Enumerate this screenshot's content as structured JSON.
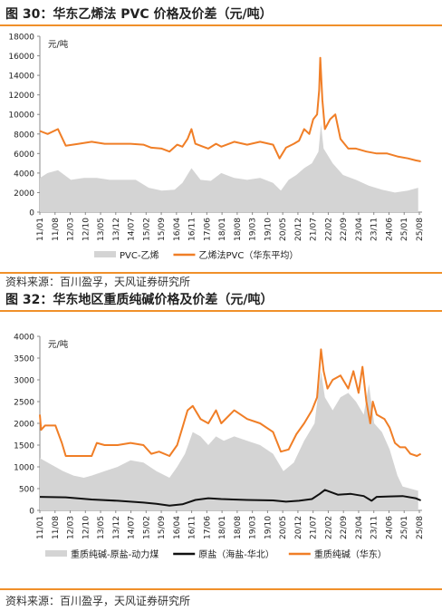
{
  "figures": [
    {
      "title": "图 30：华东乙烯法 PVC 价格及价差（元/吨）",
      "source": "资料来源：百川盈孚，天风证券研究所"
    },
    {
      "title": "图 32：华东地区重质纯碱价格及价差（元/吨）",
      "source": "资料来源：百川盈孚，天风证券研究所"
    }
  ],
  "chart_data": [
    {
      "type": "area",
      "title": "",
      "unit_label": "元/吨",
      "ylim": [
        0,
        18000
      ],
      "yticks": [
        0,
        2000,
        4000,
        6000,
        8000,
        10000,
        12000,
        14000,
        16000,
        18000
      ],
      "xlim": [
        2011.0,
        2025.75
      ],
      "xticks": [
        "11/01",
        "11/08",
        "12/03",
        "12/10",
        "13/05",
        "13/12",
        "14/07",
        "15/02",
        "15/09",
        "16/04",
        "16/11",
        "17/06",
        "18/01",
        "18/08",
        "19/03",
        "19/10",
        "20/05",
        "20/12",
        "21/07",
        "22/02",
        "22/09",
        "23/04",
        "23/11",
        "24/06",
        "25/01",
        "25/08"
      ],
      "legend_position": "bottom",
      "colors": {
        "spread": "#d4d4d4",
        "price": "#f07e26"
      },
      "series": [
        {
          "name": "PVC-乙烯",
          "kind": "area",
          "x": [
            2011.0,
            2011.3,
            2011.7,
            2012.2,
            2012.7,
            2013.2,
            2013.7,
            2014.2,
            2014.7,
            2015.2,
            2015.7,
            2016.2,
            2016.5,
            2016.85,
            2017.2,
            2017.6,
            2018.0,
            2018.5,
            2019.0,
            2019.5,
            2020.0,
            2020.3,
            2020.6,
            2020.9,
            2021.2,
            2021.5,
            2021.75,
            2021.85,
            2021.95,
            2022.3,
            2022.7,
            2023.2,
            2023.7,
            2024.2,
            2024.7,
            2025.2,
            2025.6
          ],
          "y": [
            3500,
            4000,
            4300,
            3300,
            3500,
            3500,
            3300,
            3300,
            3300,
            2500,
            2200,
            2300,
            3000,
            4500,
            3300,
            3200,
            4000,
            3500,
            3300,
            3500,
            3000,
            2200,
            3300,
            3800,
            4500,
            5000,
            6200,
            9000,
            6500,
            5000,
            3800,
            3300,
            2700,
            2300,
            2000,
            2200,
            2500
          ]
        },
        {
          "name": "乙烯法PVC（华东平均）",
          "kind": "line",
          "x": [
            2011.0,
            2011.3,
            2011.7,
            2012.0,
            2012.5,
            2013.0,
            2013.5,
            2014.0,
            2014.5,
            2015.0,
            2015.3,
            2015.7,
            2016.0,
            2016.3,
            2016.5,
            2016.7,
            2016.85,
            2017.0,
            2017.3,
            2017.5,
            2017.8,
            2018.0,
            2018.5,
            2019.0,
            2019.5,
            2020.0,
            2020.25,
            2020.5,
            2020.8,
            2021.0,
            2021.2,
            2021.4,
            2021.55,
            2021.7,
            2021.78,
            2021.82,
            2021.9,
            2022.0,
            2022.2,
            2022.4,
            2022.6,
            2022.9,
            2023.2,
            2023.6,
            2024.0,
            2024.4,
            2024.8,
            2025.2,
            2025.5,
            2025.7
          ],
          "y": [
            8300,
            8000,
            8500,
            6800,
            7000,
            7200,
            7000,
            7000,
            7000,
            6900,
            6600,
            6500,
            6200,
            6900,
            6700,
            7500,
            8500,
            7000,
            6700,
            6500,
            7000,
            6700,
            7200,
            6900,
            7200,
            6900,
            5500,
            6600,
            7000,
            7300,
            8500,
            8000,
            9500,
            10000,
            12500,
            15800,
            11500,
            8500,
            9500,
            10000,
            7500,
            6500,
            6500,
            6200,
            6000,
            6000,
            5700,
            5500,
            5300,
            5200
          ]
        }
      ]
    },
    {
      "type": "area",
      "title": "",
      "unit_label": "元/吨",
      "ylim": [
        0,
        4000
      ],
      "yticks": [
        0,
        500,
        1000,
        1500,
        2000,
        2500,
        3000,
        3500,
        4000
      ],
      "xlim": [
        2011.0,
        2025.75
      ],
      "xticks": [
        "11/01",
        "11/08",
        "12/03",
        "12/10",
        "13/05",
        "13/12",
        "14/07",
        "15/02",
        "15/09",
        "16/04",
        "16/11",
        "17/06",
        "18/01",
        "18/08",
        "19/03",
        "19/10",
        "20/05",
        "20/12",
        "21/07",
        "22/02",
        "22/09",
        "23/04",
        "23/11",
        "24/06",
        "25/01",
        "25/08"
      ],
      "legend_position": "bottom",
      "colors": {
        "spread": "#d4d4d4",
        "salt": "#111111",
        "soda": "#f07e26"
      },
      "series": [
        {
          "name": "重质纯碱-原盐-动力煤",
          "kind": "area",
          "x": [
            2011.0,
            2011.3,
            2011.6,
            2011.9,
            2012.3,
            2012.7,
            2013.0,
            2013.5,
            2014.0,
            2014.5,
            2015.0,
            2015.5,
            2016.0,
            2016.3,
            2016.6,
            2016.9,
            2017.2,
            2017.5,
            2017.8,
            2018.1,
            2018.5,
            2019.0,
            2019.5,
            2020.0,
            2020.4,
            2020.8,
            2021.2,
            2021.6,
            2021.85,
            2022.0,
            2022.3,
            2022.6,
            2022.9,
            2023.2,
            2023.5,
            2023.7,
            2023.9,
            2024.2,
            2024.5,
            2024.8,
            2025.0,
            2025.3,
            2025.6
          ],
          "y": [
            1200,
            1100,
            1000,
            900,
            800,
            750,
            800,
            900,
            1000,
            1150,
            1100,
            900,
            750,
            1000,
            1300,
            1800,
            1700,
            1500,
            1700,
            1600,
            1700,
            1600,
            1500,
            1300,
            900,
            1100,
            1600,
            2000,
            3200,
            2600,
            2300,
            2600,
            2700,
            2500,
            2200,
            2900,
            2000,
            1800,
            1400,
            800,
            550,
            500,
            450
          ]
        },
        {
          "name": "原盐（海盐-华北）",
          "kind": "line",
          "x": [
            2011.0,
            2012.0,
            2013.0,
            2014.0,
            2015.0,
            2015.5,
            2016.0,
            2016.5,
            2017.0,
            2017.5,
            2018.0,
            2019.0,
            2020.0,
            2020.5,
            2021.0,
            2021.5,
            2021.8,
            2022.0,
            2022.5,
            2023.0,
            2023.5,
            2023.8,
            2024.0,
            2024.5,
            2025.0,
            2025.5,
            2025.7
          ],
          "y": [
            310,
            300,
            250,
            220,
            180,
            150,
            110,
            140,
            240,
            280,
            260,
            240,
            230,
            200,
            220,
            260,
            380,
            470,
            360,
            380,
            330,
            220,
            310,
            320,
            330,
            280,
            230
          ]
        },
        {
          "name": "重质纯碱（华东）",
          "kind": "line",
          "x": [
            2011.0,
            2011.05,
            2011.2,
            2011.6,
            2011.85,
            2012.0,
            2012.5,
            2013.0,
            2013.2,
            2013.5,
            2014.0,
            2014.5,
            2015.0,
            2015.3,
            2015.6,
            2016.0,
            2016.3,
            2016.5,
            2016.7,
            2016.9,
            2017.2,
            2017.5,
            2017.8,
            2018.0,
            2018.5,
            2019.0,
            2019.5,
            2020.0,
            2020.3,
            2020.6,
            2020.9,
            2021.2,
            2021.5,
            2021.7,
            2021.85,
            2021.95,
            2022.1,
            2022.3,
            2022.6,
            2022.9,
            2023.1,
            2023.3,
            2023.45,
            2023.6,
            2023.75,
            2023.85,
            2024.0,
            2024.3,
            2024.5,
            2024.7,
            2024.9,
            2025.1,
            2025.3,
            2025.55,
            2025.7
          ],
          "y": [
            2200,
            1850,
            1950,
            1950,
            1550,
            1250,
            1250,
            1250,
            1550,
            1500,
            1500,
            1550,
            1500,
            1300,
            1350,
            1250,
            1500,
            1900,
            2300,
            2400,
            2100,
            2000,
            2300,
            2000,
            2300,
            2100,
            2000,
            1800,
            1350,
            1400,
            1750,
            2000,
            2300,
            2600,
            3700,
            3200,
            2800,
            3000,
            3100,
            2800,
            3200,
            2700,
            3300,
            2500,
            2000,
            2500,
            2200,
            2100,
            1900,
            1550,
            1450,
            1450,
            1300,
            1250,
            1300
          ]
        }
      ]
    }
  ]
}
